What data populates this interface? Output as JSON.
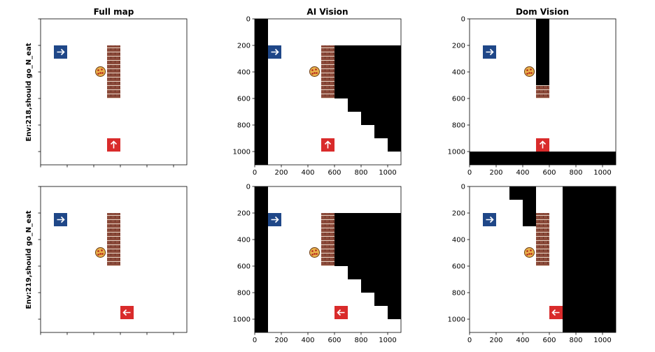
{
  "figure": {
    "columns": [
      "Full map",
      "AI Vision",
      "Dom Vision"
    ],
    "rows": [
      "Env:218,should go_N_eat",
      "Env:219,should go_N_eat"
    ]
  },
  "colors": {
    "blue_tile": "#1f4788",
    "red_tile": "#d92b2b",
    "wall": "#8b4a3a",
    "mask": "#000000"
  },
  "chart_data": [
    {
      "type": "image-grid",
      "row": "Env:218,should go_N_eat",
      "column": "Full map",
      "xlim": [
        0,
        1100
      ],
      "ylim": [
        1100,
        0
      ],
      "xticks": [],
      "yticks": [],
      "objects": [
        {
          "name": "blue-arrow-right-tile",
          "x": 150,
          "y": 250
        },
        {
          "name": "wall-column",
          "x": [
            500,
            600
          ],
          "y": [
            200,
            600
          ]
        },
        {
          "name": "food-pizza",
          "x": 450,
          "y": 350
        },
        {
          "name": "red-arrow-up-tile",
          "x": 550,
          "y": 950
        }
      ],
      "masks": []
    },
    {
      "type": "image-grid",
      "row": "Env:218,should go_N_eat",
      "column": "AI Vision",
      "xlim": [
        0,
        1100
      ],
      "ylim": [
        1100,
        0
      ],
      "xticks": [
        "0",
        "200",
        "400",
        "600",
        "800",
        "1000"
      ],
      "yticks": [
        "0",
        "200",
        "400",
        "600",
        "800",
        "1000"
      ],
      "objects": [
        {
          "name": "blue-arrow-right-tile",
          "x": 150,
          "y": 250
        },
        {
          "name": "wall-column",
          "x": [
            500,
            600
          ],
          "y": [
            200,
            600
          ]
        },
        {
          "name": "food-pizza",
          "x": 450,
          "y": 350
        },
        {
          "name": "red-arrow-up-tile",
          "x": 550,
          "y": 950
        }
      ],
      "masks": [
        [
          [
            0,
            0
          ],
          [
            100,
            0
          ],
          [
            100,
            1100
          ],
          [
            0,
            1100
          ]
        ],
        [
          [
            600,
            200
          ],
          [
            1100,
            200
          ],
          [
            1100,
            1000
          ],
          [
            1000,
            1000
          ],
          [
            1000,
            900
          ],
          [
            900,
            900
          ],
          [
            900,
            800
          ],
          [
            800,
            800
          ],
          [
            800,
            700
          ],
          [
            700,
            700
          ],
          [
            700,
            600
          ],
          [
            600,
            600
          ]
        ]
      ]
    },
    {
      "type": "image-grid",
      "row": "Env:218,should go_N_eat",
      "column": "Dom Vision",
      "xlim": [
        0,
        1100
      ],
      "ylim": [
        1100,
        0
      ],
      "xticks": [
        "0",
        "200",
        "400",
        "600",
        "800",
        "1000"
      ],
      "yticks": [
        "0",
        "200",
        "400",
        "600",
        "800",
        "1000"
      ],
      "objects": [
        {
          "name": "blue-arrow-right-tile",
          "x": 150,
          "y": 250
        },
        {
          "name": "wall-column",
          "x": [
            500,
            600
          ],
          "y": [
            500,
            600
          ]
        },
        {
          "name": "food-pizza",
          "x": 450,
          "y": 350
        },
        {
          "name": "red-arrow-up-tile",
          "x": 550,
          "y": 950
        }
      ],
      "masks": [
        [
          [
            500,
            0
          ],
          [
            600,
            0
          ],
          [
            600,
            500
          ],
          [
            500,
            500
          ]
        ],
        [
          [
            0,
            1000
          ],
          [
            1100,
            1000
          ],
          [
            1100,
            1100
          ],
          [
            0,
            1100
          ]
        ]
      ]
    },
    {
      "type": "image-grid",
      "row": "Env:219,should go_N_eat",
      "column": "Full map",
      "xlim": [
        0,
        1100
      ],
      "ylim": [
        1100,
        0
      ],
      "xticks": [],
      "yticks": [],
      "objects": [
        {
          "name": "blue-arrow-right-tile",
          "x": 150,
          "y": 250
        },
        {
          "name": "wall-column",
          "x": [
            500,
            600
          ],
          "y": [
            200,
            600
          ]
        },
        {
          "name": "food-pizza",
          "x": 450,
          "y": 450
        },
        {
          "name": "red-arrow-left-tile",
          "x": 650,
          "y": 950
        }
      ],
      "masks": []
    },
    {
      "type": "image-grid",
      "row": "Env:219,should go_N_eat",
      "column": "AI Vision",
      "xlim": [
        0,
        1100
      ],
      "ylim": [
        1100,
        0
      ],
      "xticks": [
        "0",
        "200",
        "400",
        "600",
        "800",
        "1000"
      ],
      "yticks": [
        "0",
        "200",
        "400",
        "600",
        "800",
        "1000"
      ],
      "objects": [
        {
          "name": "blue-arrow-right-tile",
          "x": 150,
          "y": 250
        },
        {
          "name": "wall-column",
          "x": [
            500,
            600
          ],
          "y": [
            200,
            600
          ]
        },
        {
          "name": "food-pizza",
          "x": 450,
          "y": 450
        },
        {
          "name": "red-arrow-left-tile",
          "x": 650,
          "y": 950
        }
      ],
      "masks": [
        [
          [
            0,
            0
          ],
          [
            100,
            0
          ],
          [
            100,
            1100
          ],
          [
            0,
            1100
          ]
        ],
        [
          [
            600,
            200
          ],
          [
            1100,
            200
          ],
          [
            1100,
            1000
          ],
          [
            1000,
            1000
          ],
          [
            1000,
            900
          ],
          [
            900,
            900
          ],
          [
            900,
            800
          ],
          [
            800,
            800
          ],
          [
            800,
            700
          ],
          [
            700,
            700
          ],
          [
            700,
            600
          ],
          [
            600,
            600
          ]
        ]
      ]
    },
    {
      "type": "image-grid",
      "row": "Env:219,should go_N_eat",
      "column": "Dom Vision",
      "xlim": [
        0,
        1100
      ],
      "ylim": [
        1100,
        0
      ],
      "xticks": [
        "0",
        "200",
        "400",
        "600",
        "800",
        "1000"
      ],
      "yticks": [
        "0",
        "200",
        "400",
        "600",
        "800",
        "1000"
      ],
      "objects": [
        {
          "name": "blue-arrow-right-tile",
          "x": 150,
          "y": 250
        },
        {
          "name": "wall-column",
          "x": [
            500,
            600
          ],
          "y": [
            200,
            600
          ]
        },
        {
          "name": "food-pizza",
          "x": 450,
          "y": 450
        },
        {
          "name": "red-arrow-left-tile",
          "x": 650,
          "y": 950
        }
      ],
      "masks": [
        [
          [
            300,
            0
          ],
          [
            500,
            0
          ],
          [
            500,
            300
          ],
          [
            400,
            300
          ],
          [
            400,
            100
          ],
          [
            300,
            100
          ]
        ],
        [
          [
            700,
            0
          ],
          [
            1100,
            0
          ],
          [
            1100,
            1100
          ],
          [
            700,
            1100
          ]
        ]
      ]
    }
  ]
}
